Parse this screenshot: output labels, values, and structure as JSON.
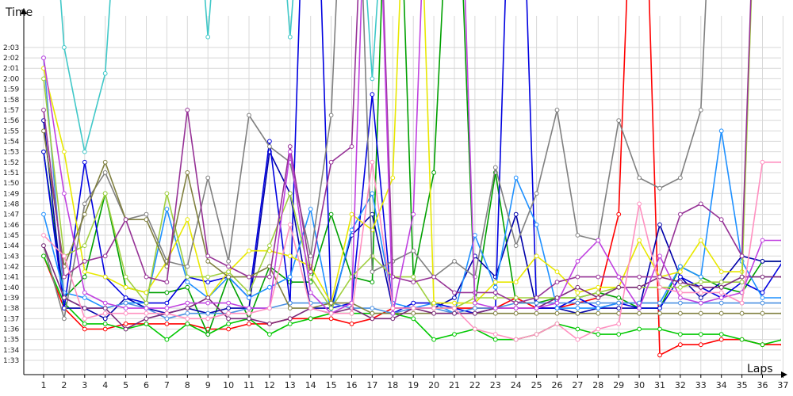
{
  "chart_data": {
    "type": "line",
    "xlabel": "Laps",
    "ylabel": "Time",
    "x": [
      1,
      2,
      3,
      4,
      5,
      6,
      7,
      8,
      9,
      10,
      11,
      12,
      13,
      14,
      15,
      16,
      17,
      18,
      19,
      20,
      21,
      22,
      23,
      24,
      25,
      26,
      27,
      28,
      29,
      30,
      31,
      32,
      33,
      34,
      35,
      36,
      37
    ],
    "x_ticks": [
      "1",
      "2",
      "3",
      "4",
      "5",
      "6",
      "7",
      "8",
      "9",
      "10",
      "11",
      "12",
      "13",
      "14",
      "15",
      "16",
      "17",
      "18",
      "19",
      "20",
      "21",
      "22",
      "23",
      "24",
      "25",
      "26",
      "27",
      "28",
      "29",
      "30",
      "31",
      "32",
      "33",
      "34",
      "35",
      "36",
      "37"
    ],
    "y_ticks": [
      "1:33",
      "1:34",
      "1:35",
      "1:36",
      "1:37",
      "1:38",
      "1:39",
      "1:40",
      "1:41",
      "1:42",
      "1:43",
      "1:44",
      "1:45",
      "1:46",
      "1:47",
      "1:48",
      "1:49",
      "1:50",
      "1:51",
      "1:52",
      "1:53",
      "1:54",
      "1:55",
      "1:56",
      "1:57",
      "1:58",
      "1:59",
      "2:00",
      "2:01",
      "2:02",
      "2:03"
    ],
    "ylim_seconds": [
      92,
      127
    ],
    "grid": true,
    "legend": "none",
    "series": [
      {
        "color": "#ff0000",
        "values": [
          103,
          98,
          96,
          96,
          96.5,
          96.5,
          96.5,
          96.5,
          96,
          96,
          96.5,
          96.5,
          97,
          97,
          97,
          96.5,
          97,
          98,
          98,
          98,
          98,
          98,
          98,
          99,
          98,
          98,
          98.5,
          99,
          107,
          160,
          93.5,
          94.5,
          94.5,
          95,
          95,
          94.5,
          94.5
        ]
      },
      {
        "color": "#00c800",
        "values": [
          103,
          98.5,
          96.5,
          96.5,
          96,
          96.5,
          95,
          96.5,
          95.5,
          96.5,
          97,
          95.5,
          96.5,
          97,
          97.5,
          97.5,
          97.5,
          97.5,
          97,
          95,
          95.5,
          96,
          95,
          95,
          95.5,
          96.5,
          96,
          95.5,
          95.5,
          96,
          96,
          95.5,
          95.5,
          95.5,
          95,
          94.5,
          95
        ]
      },
      {
        "color": "#00a000",
        "values": [
          113,
          99,
          101,
          109,
          100,
          99.5,
          99.5,
          100,
          95.5,
          101,
          97,
          102,
          100.5,
          100.5,
          107,
          101,
          100.5,
          160,
          101,
          111,
          150,
          98.5,
          111,
          98.5,
          98.5,
          99,
          99,
          99.5,
          99,
          98,
          98,
          102,
          101,
          100,
          99.5,
          102.5,
          102.5
        ]
      },
      {
        "color": "#0000aa",
        "values": [
          116,
          98,
          98,
          97,
          99,
          98,
          97.5,
          98,
          97.5,
          98,
          98,
          113,
          109,
          98,
          98,
          105,
          107,
          98,
          98,
          98,
          99,
          103,
          101,
          107,
          98,
          98,
          97.5,
          98,
          98,
          98,
          106,
          101,
          99,
          100.5,
          103,
          102.5,
          102.5
        ]
      },
      {
        "color": "#0000e0",
        "values": [
          113,
          98,
          112,
          101,
          99,
          98.5,
          98.5,
          101,
          100.5,
          101,
          99,
          114,
          98.5,
          160,
          98,
          98.5,
          118.5,
          97.5,
          98.5,
          98.5,
          98,
          97.5,
          98,
          160,
          98,
          98,
          99,
          98,
          98.5,
          98,
          98,
          101,
          100,
          99,
          100.5,
          99.5,
          102.5
        ]
      },
      {
        "color": "#1e90ff",
        "values": [
          107,
          99.5,
          99,
          98,
          98.5,
          98.5,
          107.5,
          100.5,
          99,
          101,
          99,
          100,
          101,
          107.5,
          97.5,
          105.5,
          109,
          98.5,
          98,
          98.5,
          97.5,
          105,
          100,
          110.5,
          106,
          98,
          98,
          98,
          98.5,
          98.5,
          98.5,
          102,
          101,
          115,
          102.5,
          99,
          99
        ]
      },
      {
        "color": "#4a90e2",
        "values": [
          122,
          99,
          98,
          98,
          98.5,
          98,
          97,
          97.5,
          97.5,
          97.5,
          98,
          98,
          98.5,
          98.5,
          98.5,
          98,
          98,
          97.5,
          98,
          98,
          97.5,
          98,
          98,
          98.5,
          98.5,
          98.5,
          98.5,
          98.5,
          98.5,
          98.5,
          98.5,
          98.5,
          98.5,
          98.5,
          98.5,
          98.5,
          98.5
        ]
      },
      {
        "color": "#40c8c8",
        "values": [
          150,
          123,
          113,
          120.5,
          150,
          150,
          150,
          150,
          124,
          150,
          150,
          150,
          124,
          150,
          150,
          150,
          120,
          150,
          150,
          150,
          150,
          150,
          150,
          150,
          150,
          150,
          150,
          150,
          150,
          150,
          150,
          150,
          150,
          150,
          150,
          150,
          150
        ]
      },
      {
        "color": "#e8e800",
        "values": [
          121,
          113,
          101.5,
          101,
          100,
          99.5,
          102.5,
          106.5,
          99,
          101.5,
          103.5,
          103.5,
          103,
          102,
          98.5,
          107,
          105.5,
          110.5,
          160,
          98.5,
          98.5,
          98.5,
          100.5,
          100.5,
          103,
          101.5,
          99.5,
          100,
          100,
          104.5,
          101,
          101.5,
          104.5,
          101.5,
          101.5,
          160,
          160
        ]
      },
      {
        "color": "#a0d040",
        "values": [
          120,
          103,
          104,
          109,
          101,
          98.5,
          109,
          101,
          101,
          101.5,
          99.5,
          104,
          109,
          101,
          98,
          101,
          103,
          101,
          101,
          98,
          98,
          99,
          99,
          99,
          99,
          99,
          99,
          99.5,
          100,
          100,
          100,
          100,
          100.5,
          100.5,
          100.5,
          160,
          160
        ]
      },
      {
        "color": "#808080",
        "values": [
          104,
          97,
          108,
          111,
          106.5,
          107,
          102.5,
          102,
          110.5,
          102.5,
          116.5,
          113.5,
          112,
          103,
          116.5,
          160,
          101.5,
          102.5,
          103.5,
          101,
          102.5,
          101,
          111.5,
          104,
          109,
          117,
          105,
          104.5,
          116,
          110.5,
          109.5,
          110.5,
          117,
          160,
          160,
          160,
          160
        ]
      },
      {
        "color": "#808040",
        "values": [
          115,
          102,
          107,
          112,
          106.5,
          106.5,
          102,
          111,
          102.5,
          101,
          101,
          102,
          98,
          98,
          98.5,
          98.5,
          97.5,
          97.5,
          97.5,
          97.5,
          97.5,
          97.5,
          97.5,
          97.5,
          97.5,
          97.5,
          97.5,
          97.5,
          97.5,
          97.5,
          97.5,
          97.5,
          97.5,
          97.5,
          97.5,
          97.5,
          97.5
        ]
      },
      {
        "color": "#7a2a7a",
        "values": [
          104,
          99,
          98,
          98,
          96,
          97,
          97.5,
          98,
          99,
          97,
          97,
          96.5,
          97,
          98,
          97.5,
          98,
          97,
          97,
          98,
          97.5,
          97.5,
          97.5,
          98,
          98,
          98,
          99,
          100,
          99,
          100,
          100,
          101,
          100.5,
          100,
          100,
          101,
          101,
          101
        ]
      },
      {
        "color": "#963296",
        "values": [
          117,
          101,
          102.5,
          103,
          106.5,
          101,
          100.5,
          117,
          103,
          102,
          101,
          101,
          113.5,
          101.5,
          112,
          113.5,
          160,
          101,
          100.5,
          101,
          99.5,
          99.5,
          99.5,
          98.5,
          99,
          100.5,
          101,
          101,
          101,
          101,
          101,
          107,
          108,
          106.5,
          103,
          160,
          160
        ]
      },
      {
        "color": "#c040e0",
        "values": [
          122,
          109,
          99.5,
          98.5,
          98,
          98,
          98,
          98.5,
          98.5,
          98.5,
          98,
          98,
          113,
          99.5,
          97.5,
          98.5,
          160,
          97.5,
          107,
          160,
          160,
          98.5,
          98,
          98,
          98,
          98.5,
          102.5,
          104.5,
          101,
          98,
          103,
          99,
          98.5,
          99,
          99.5,
          104.5,
          104.5
        ]
      },
      {
        "color": "#ff90c0",
        "values": [
          105,
          103,
          97,
          97.5,
          97.5,
          97.5,
          97.5,
          97,
          97,
          97.5,
          97.5,
          98,
          106,
          98,
          97.5,
          97.5,
          112,
          98,
          98,
          98,
          98,
          96,
          95.5,
          95,
          95.5,
          96.5,
          95,
          96,
          96.5,
          108,
          100,
          99.5,
          99.5,
          99.5,
          98.5,
          112,
          112
        ]
      }
    ]
  }
}
